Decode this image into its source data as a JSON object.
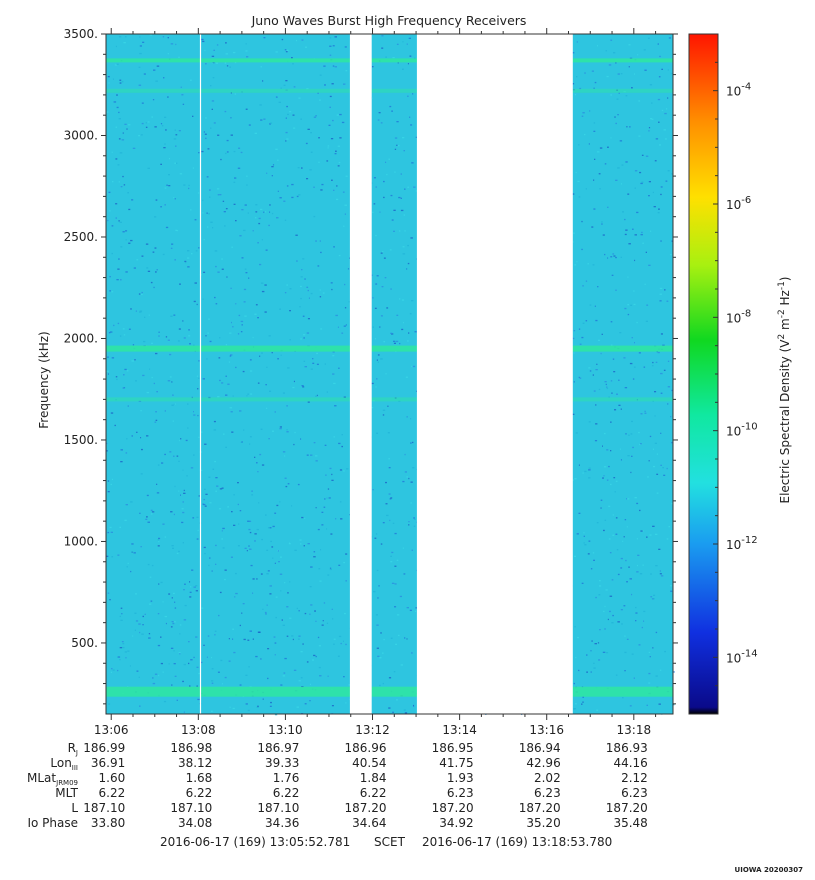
{
  "chart_data": {
    "type": "heatmap",
    "title": "Juno Waves Burst High Frequency Receivers",
    "ylabel": "Frequency (kHz)",
    "colorbar_label": "Electric Spectral Density (V",
    "colorbar_label_sup1": "2",
    "colorbar_label_mid": " m",
    "colorbar_label_sup2": "-2",
    "colorbar_label_mid2": " Hz",
    "colorbar_label_sup3": "-1",
    "colorbar_label_end": ")",
    "y_ticks": [
      "3500.",
      "3000.",
      "2500.",
      "2000.",
      "1500.",
      "1000.",
      "500."
    ],
    "y_tick_values": [
      3500,
      3000,
      2500,
      2000,
      1500,
      1000,
      500
    ],
    "ylim": [
      150,
      3500
    ],
    "x_ticks": [
      "13:06",
      "13:08",
      "13:10",
      "13:12",
      "13:14",
      "13:16",
      "13:18"
    ],
    "x_tick_minutes": [
      6,
      8,
      10,
      12,
      14,
      16,
      18
    ],
    "xlim_minutes": [
      5.88,
      18.9
    ],
    "colorbar_ticks": [
      {
        "base": "10",
        "exp": "-4",
        "value": -4
      },
      {
        "base": "10",
        "exp": "-6",
        "value": -6
      },
      {
        "base": "10",
        "exp": "-8",
        "value": -8
      },
      {
        "base": "10",
        "exp": "-10",
        "value": -10
      },
      {
        "base": "10",
        "exp": "-12",
        "value": -12
      },
      {
        "base": "10",
        "exp": "-14",
        "value": -14
      }
    ],
    "colorbar_range_log10": [
      -15,
      -3
    ],
    "data_gaps_minutes": [
      [
        11.48,
        11.98
      ],
      [
        13.02,
        16.6
      ]
    ],
    "emission_lines_khz": [
      3370,
      3220,
      1950,
      1700,
      260
    ],
    "background_level_log10": -12,
    "colors": {
      "background": "#2ec5e0",
      "band": "#2ee6a0",
      "speckle": "#1f78d8",
      "gap": "#ffffff"
    }
  },
  "ephemeris": {
    "rows": [
      {
        "label": "R",
        "sub": "J",
        "values": [
          "186.99",
          "186.98",
          "186.97",
          "186.96",
          "186.95",
          "186.94",
          "186.93"
        ]
      },
      {
        "label": "Lon",
        "sub": "III",
        "values": [
          "36.91",
          "38.12",
          "39.33",
          "40.54",
          "41.75",
          "42.96",
          "44.16"
        ]
      },
      {
        "label": "MLat",
        "sub": "JRM09",
        "values": [
          "1.60",
          "1.68",
          "1.76",
          "1.84",
          "1.93",
          "2.02",
          "2.12"
        ]
      },
      {
        "label": "MLT",
        "sub": "",
        "values": [
          "6.22",
          "6.22",
          "6.22",
          "6.22",
          "6.23",
          "6.23",
          "6.23"
        ]
      },
      {
        "label": "L",
        "sub": "",
        "values": [
          "187.10",
          "187.10",
          "187.10",
          "187.20",
          "187.20",
          "187.20",
          "187.20"
        ]
      },
      {
        "label": "Io Phase",
        "sub": "",
        "values": [
          "33.80",
          "34.08",
          "34.36",
          "34.64",
          "34.92",
          "35.20",
          "35.48"
        ]
      }
    ]
  },
  "footer": {
    "start": "2016-06-17 (169) 13:05:52.781",
    "scet": "SCET",
    "end": "2016-06-17 (169) 13:18:53.780",
    "credit": "UIOWA 20200307"
  }
}
